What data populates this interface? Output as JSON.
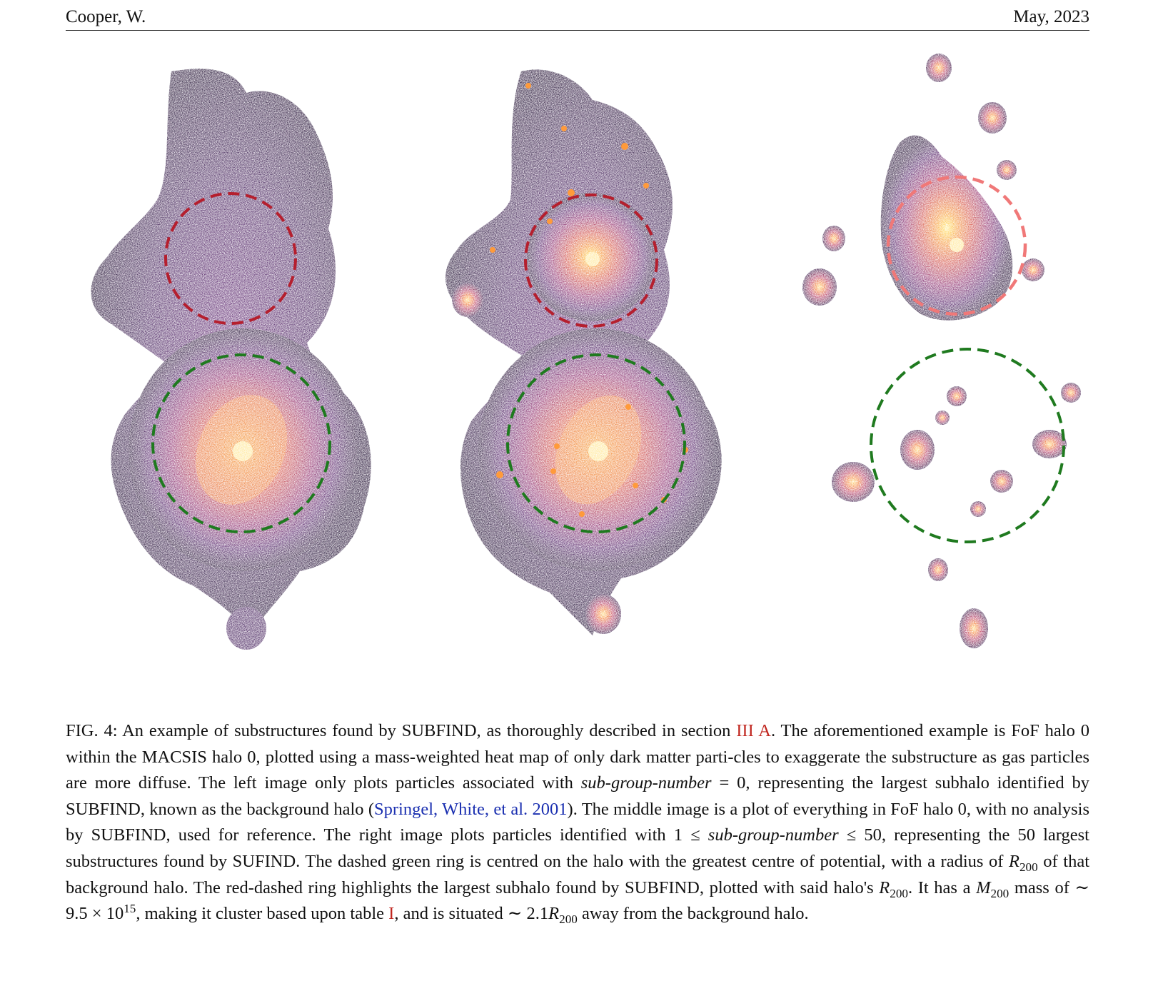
{
  "header": {
    "author": "Cooper, W.",
    "date": "May, 2023"
  },
  "figure": {
    "panels": [
      "background-halo",
      "full-fof-halo",
      "substructures"
    ],
    "colors": {
      "green_ring": "#1f7a1f",
      "red_ring_dark": "#b51f2e",
      "red_ring_light": "#f07878",
      "heat_core": "#ffd24a",
      "heat_mid": "#e8533f",
      "heat_outer": "#5a1a6e",
      "heat_edge": "#1a0a2a"
    },
    "colormap": "inferno"
  },
  "caption": {
    "label": "FIG. 4:",
    "t1": " An example of substructures found by SUBFIND, as thoroughly described in section ",
    "ref_section": "III A",
    "t2": ". The aforementioned example is FoF halo 0 within the MACSIS halo 0, plotted using a mass-weighted heat map of only dark matter parti-cles to exaggerate the substructure as gas particles are more diffuse.  The left image only plots particles associated with ",
    "sgn1": "sub-group-number",
    "t3": " = 0, representing the largest subhalo identified by SUBFIND, known as the background halo (",
    "cite": "Springel, White, et al. 2001",
    "t4": "). The middle image is a plot of everything in FoF halo 0, with no analysis by SUBFIND, used for reference. The right image plots particles identified with 1 ≤ ",
    "sgn2": "sub-group-number",
    "t5": " ≤ 50, representing the 50 largest substructures found by SUFIND. The dashed green ring is centred on the halo with the greatest centre of potential, with a radius of ",
    "r200_a": "R",
    "r200_a_sub": "200",
    "t6": " of that background halo.  The red-dashed ring highlights the largest subhalo found by SUBFIND, plotted with said halo's ",
    "r200_b": "R",
    "r200_b_sub": "200",
    "t7": ".  It has a ",
    "m200": "M",
    "m200_sub": "200",
    "t8": " mass of ∼ 9.5 × 10",
    "exp": "15",
    "t9": ", making it cluster based upon table ",
    "ref_table": "I",
    "t10": ", and is situated ∼ 2.1",
    "r200_c": "R",
    "r200_c_sub": "200",
    "t11": " away from the background halo."
  }
}
